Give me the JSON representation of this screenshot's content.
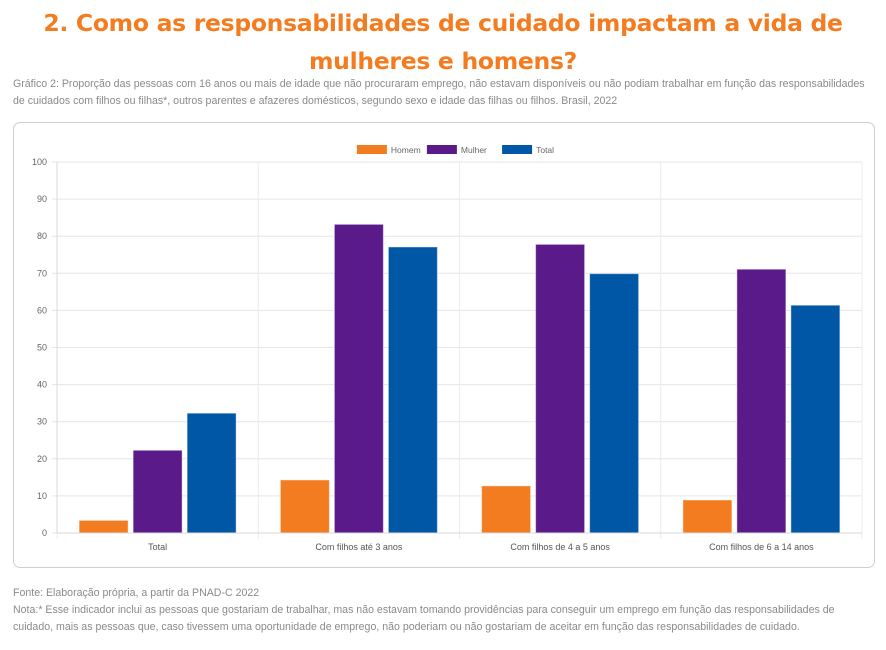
{
  "page": {
    "title": "2. Como as responsabilidades de cuidado impactam a vida de mulheres e homens?",
    "caption": "Gráfico 2: Proporção das pessoas com 16 anos ou mais de idade que não procuraram emprego, não estavam disponíveis ou não podiam trabalhar em função das responsabilidades de cuidados com filhos ou filhas*, outros parentes e afazeres domésticos, segundo sexo e idade das filhas ou filhos. Brasil, 2022",
    "source": "Fonte: Elaboração própria, a partir da PNAD-C 2022",
    "note": "Nota:* Esse indicador inclui as pessoas que gostariam de trabalhar, mas não estavam tomando providências para conseguir um emprego em função das responsabilidades de cuidado, mais as pessoas que, caso tivessem uma oportunidade de emprego, não poderiam ou não gostariam de aceitar em função das responsabilidades de cuidado."
  },
  "chart_data": {
    "type": "bar",
    "title": "",
    "xlabel": "",
    "ylabel": "",
    "categories": [
      "Total",
      "Com filhos até 3 anos",
      "Com filhos de 4 a 5 anos",
      "Com filhos de 6 a 14 anos"
    ],
    "series": [
      {
        "name": "Homem",
        "color": "#f47c20",
        "values": [
          3.4,
          14.3,
          12.7,
          8.9
        ]
      },
      {
        "name": "Mulher",
        "color": "#5b1a8a",
        "values": [
          22.3,
          83.2,
          77.8,
          71.1
        ]
      },
      {
        "name": "Total",
        "color": "#0057a6",
        "values": [
          32.3,
          77.1,
          69.9,
          61.4
        ]
      }
    ],
    "ylim": [
      0,
      100
    ],
    "yticks": [
      0,
      10,
      20,
      30,
      40,
      50,
      60,
      70,
      80,
      90,
      100
    ],
    "grid": true,
    "legend_position": "top-center"
  }
}
